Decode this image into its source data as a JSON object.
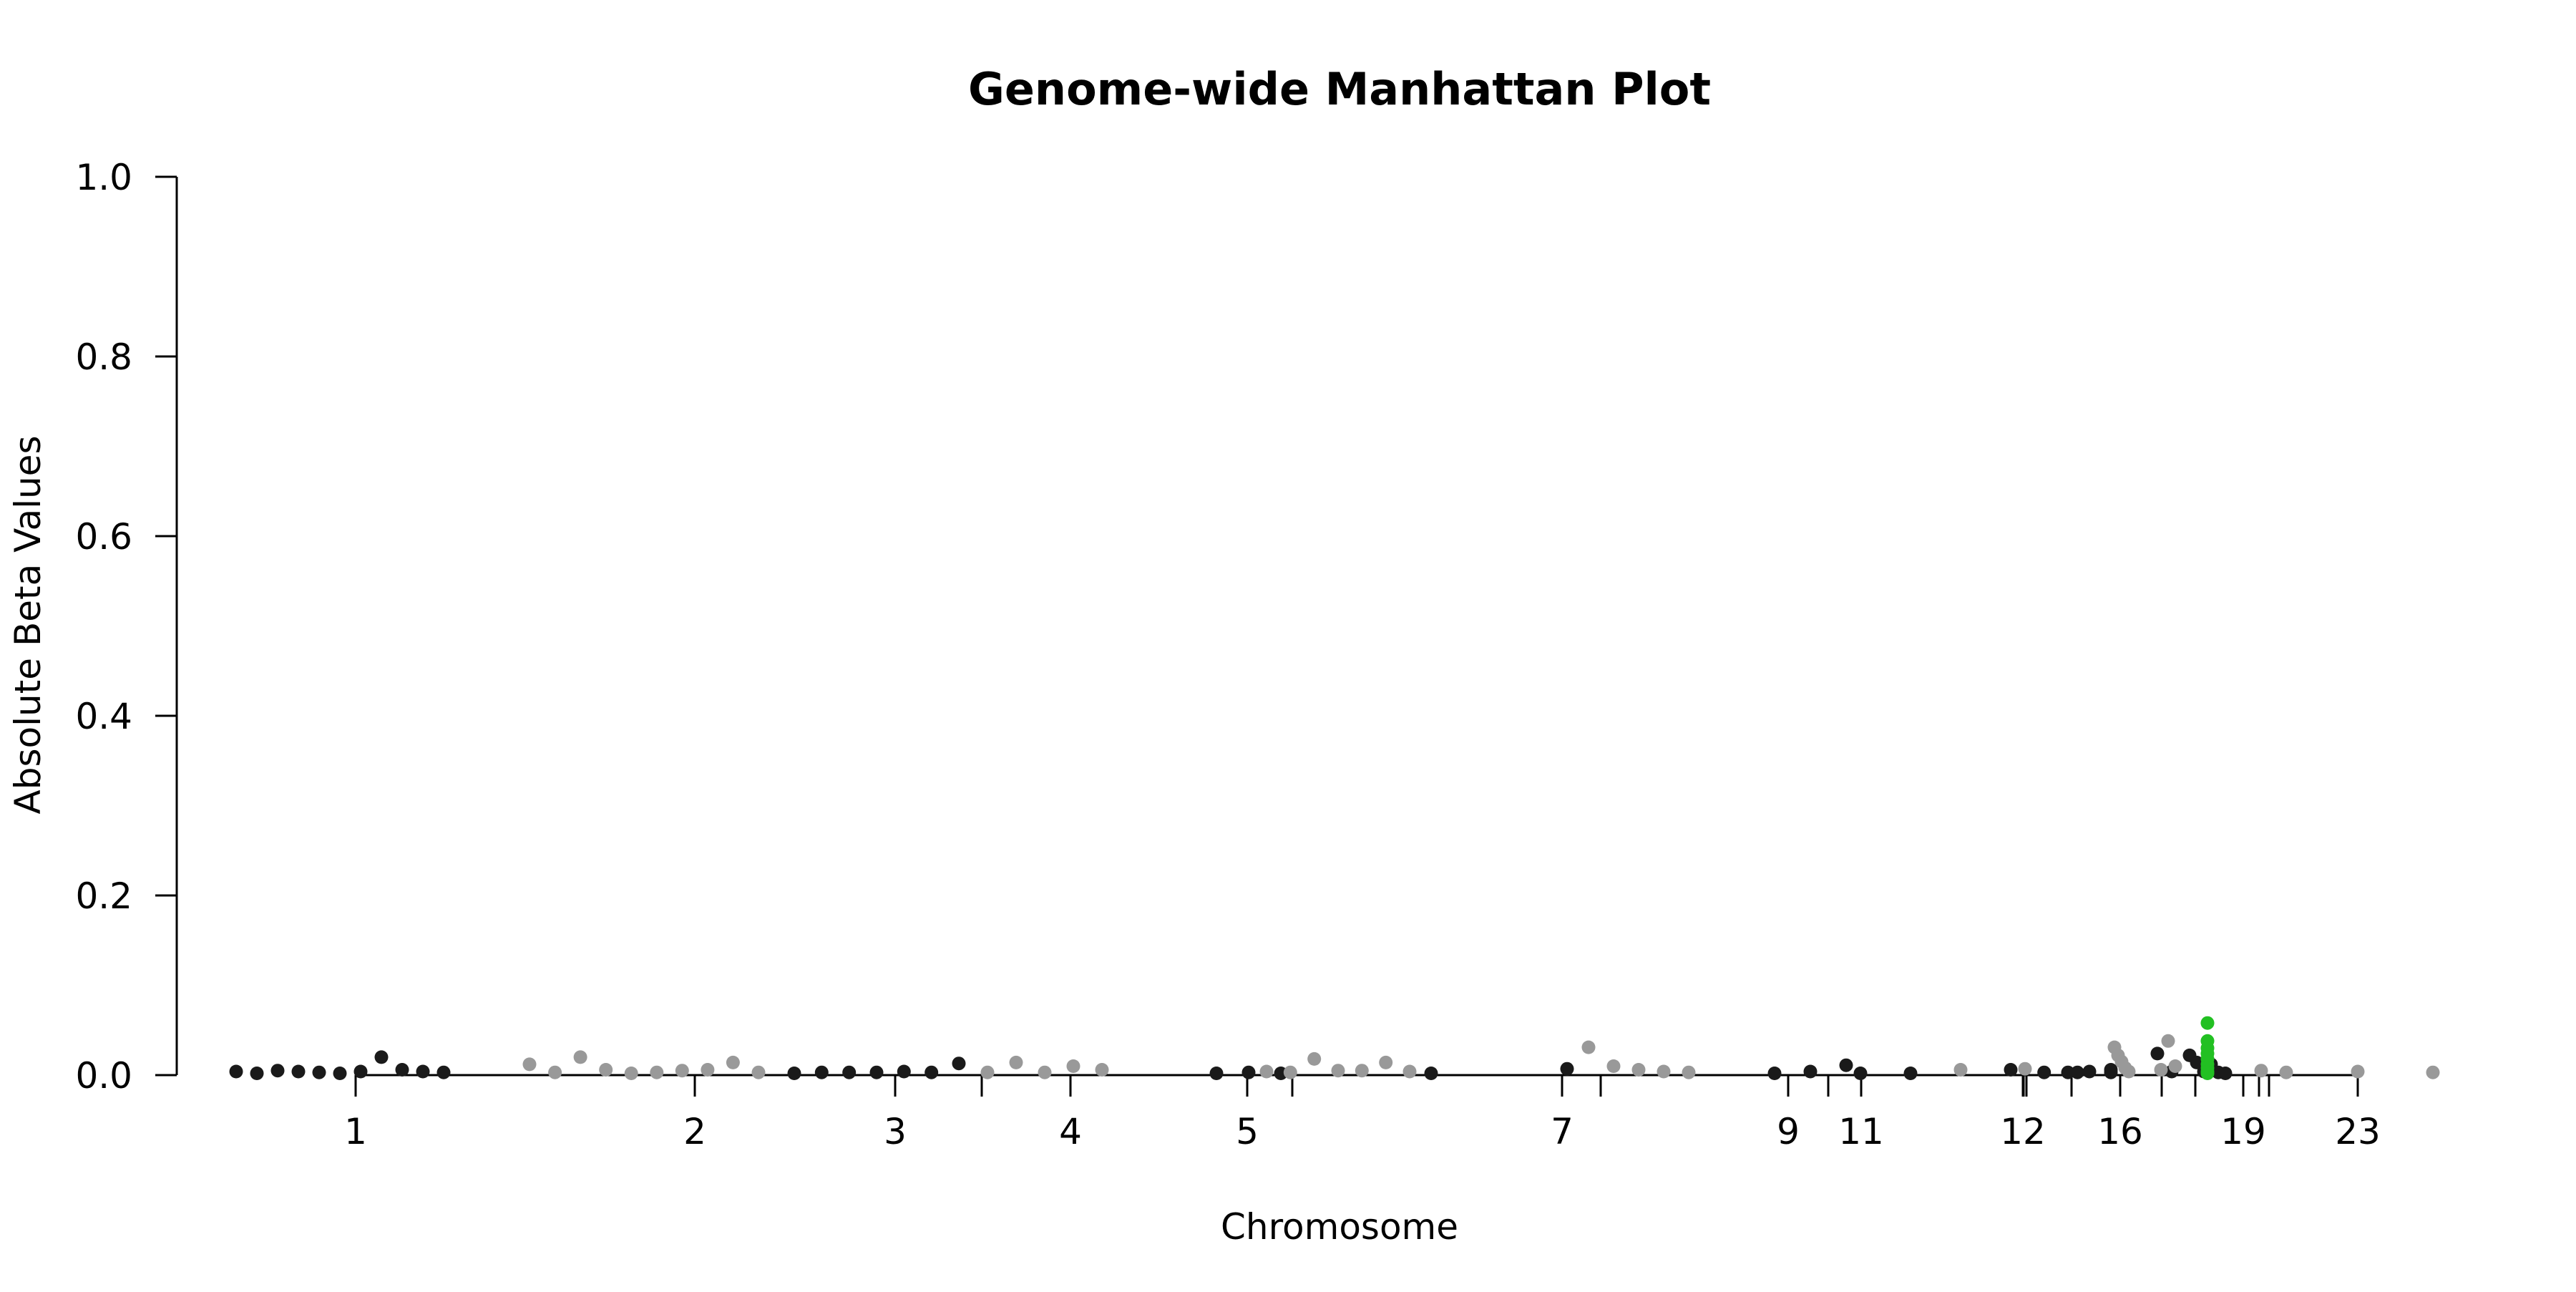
{
  "chart_data": {
    "type": "scatter",
    "title": "Genome-wide Manhattan Plot",
    "xlabel": "Chromosome",
    "ylabel": "Absolute Beta Values",
    "ylim": [
      0,
      1.0
    ],
    "y_ticks": [
      "0.0",
      "0.2",
      "0.4",
      "0.6",
      "0.8",
      "1.0"
    ],
    "x_tick_labels": [
      "1",
      "2",
      "3",
      "4",
      "5",
      "7",
      "9",
      "11",
      "12",
      "16",
      "19",
      "23"
    ],
    "x_ticks_unlabeled": 11,
    "grid": false,
    "legend": "none",
    "colors": {
      "dark": "#1a1a1a",
      "light": "#999999",
      "highlight": "#22c022",
      "axis": "#000000"
    },
    "series": [
      {
        "color_group": "dark",
        "points": [
          {
            "x": 1,
            "y": 0.004
          },
          {
            "x": 1,
            "y": 0.002
          },
          {
            "x": 1,
            "y": 0.005
          },
          {
            "x": 1,
            "y": 0.004
          },
          {
            "x": 1,
            "y": 0.003
          },
          {
            "x": 1,
            "y": 0.002
          },
          {
            "x": 1,
            "y": 0.004
          },
          {
            "x": 1,
            "y": 0.02
          },
          {
            "x": 1,
            "y": 0.006
          },
          {
            "x": 1,
            "y": 0.004
          },
          {
            "x": 1,
            "y": 0.003
          },
          {
            "x": 3,
            "y": 0.002
          },
          {
            "x": 3,
            "y": 0.003
          },
          {
            "x": 3,
            "y": 0.003
          },
          {
            "x": 3,
            "y": 0.003
          },
          {
            "x": 3,
            "y": 0.004
          },
          {
            "x": 3,
            "y": 0.003
          },
          {
            "x": 3,
            "y": 0.013
          },
          {
            "x": 5,
            "y": 0.002
          },
          {
            "x": 5,
            "y": 0.003
          },
          {
            "x": 5,
            "y": 0.002
          },
          {
            "x": 7,
            "y": 0.002
          },
          {
            "x": 7,
            "y": 0.007
          },
          {
            "x": 9,
            "y": 0.002
          },
          {
            "x": 9,
            "y": 0.004
          },
          {
            "x": 9,
            "y": 0.011
          },
          {
            "x": 11,
            "y": 0.002
          },
          {
            "x": 11,
            "y": 0.002
          },
          {
            "x": 13,
            "y": 0.006
          },
          {
            "x": 13,
            "y": 0.003
          },
          {
            "x": 13,
            "y": 0.003
          },
          {
            "x": 13,
            "y": 0.003
          },
          {
            "x": 15,
            "y": 0.003
          },
          {
            "x": 15,
            "y": 0.004
          },
          {
            "x": 15,
            "y": 0.006
          },
          {
            "x": 17,
            "y": 0.024
          },
          {
            "x": 17,
            "y": 0.004
          },
          {
            "x": 19,
            "y": 0.022
          },
          {
            "x": 19,
            "y": 0.014
          },
          {
            "x": 19,
            "y": 0.004
          },
          {
            "x": 19,
            "y": 0.012
          },
          {
            "x": 19,
            "y": 0.003
          },
          {
            "x": 19,
            "y": 0.002
          }
        ]
      },
      {
        "color_group": "light",
        "points": [
          {
            "x": 2,
            "y": 0.012
          },
          {
            "x": 2,
            "y": 0.003
          },
          {
            "x": 2,
            "y": 0.02
          },
          {
            "x": 2,
            "y": 0.006
          },
          {
            "x": 2,
            "y": 0.002
          },
          {
            "x": 2,
            "y": 0.003
          },
          {
            "x": 2,
            "y": 0.005
          },
          {
            "x": 2,
            "y": 0.006
          },
          {
            "x": 2,
            "y": 0.014
          },
          {
            "x": 2,
            "y": 0.003
          },
          {
            "x": 4,
            "y": 0.003
          },
          {
            "x": 4,
            "y": 0.014
          },
          {
            "x": 4,
            "y": 0.003
          },
          {
            "x": 4,
            "y": 0.01
          },
          {
            "x": 4,
            "y": 0.006
          },
          {
            "x": 6,
            "y": 0.004
          },
          {
            "x": 6,
            "y": 0.003
          },
          {
            "x": 6,
            "y": 0.018
          },
          {
            "x": 6,
            "y": 0.005
          },
          {
            "x": 6,
            "y": 0.005
          },
          {
            "x": 6,
            "y": 0.014
          },
          {
            "x": 6,
            "y": 0.004
          },
          {
            "x": 8,
            "y": 0.031
          },
          {
            "x": 8,
            "y": 0.01
          },
          {
            "x": 8,
            "y": 0.006
          },
          {
            "x": 8,
            "y": 0.004
          },
          {
            "x": 8,
            "y": 0.003
          },
          {
            "x": 12,
            "y": 0.006
          },
          {
            "x": 14,
            "y": 0.007
          },
          {
            "x": 16,
            "y": 0.031
          },
          {
            "x": 16,
            "y": 0.022
          },
          {
            "x": 16,
            "y": 0.015
          },
          {
            "x": 16,
            "y": 0.008
          },
          {
            "x": 16,
            "y": 0.004
          },
          {
            "x": 18,
            "y": 0.006
          },
          {
            "x": 18,
            "y": 0.038
          },
          {
            "x": 18,
            "y": 0.01
          },
          {
            "x": 20,
            "y": 0.005
          },
          {
            "x": 20,
            "y": 0.003
          },
          {
            "x": 22,
            "y": 0.004
          },
          {
            "x": 24,
            "y": 0.003
          }
        ]
      },
      {
        "color_group": "highlight",
        "points": [
          {
            "x": 19,
            "y": 0.058
          },
          {
            "x": 19,
            "y": 0.038
          },
          {
            "x": 19,
            "y": 0.03
          },
          {
            "x": 19,
            "y": 0.024
          },
          {
            "x": 19,
            "y": 0.018
          },
          {
            "x": 19,
            "y": 0.012
          },
          {
            "x": 19,
            "y": 0.008
          },
          {
            "x": 19,
            "y": 0.004
          },
          {
            "x": 19,
            "y": 0.002
          }
        ]
      }
    ]
  }
}
